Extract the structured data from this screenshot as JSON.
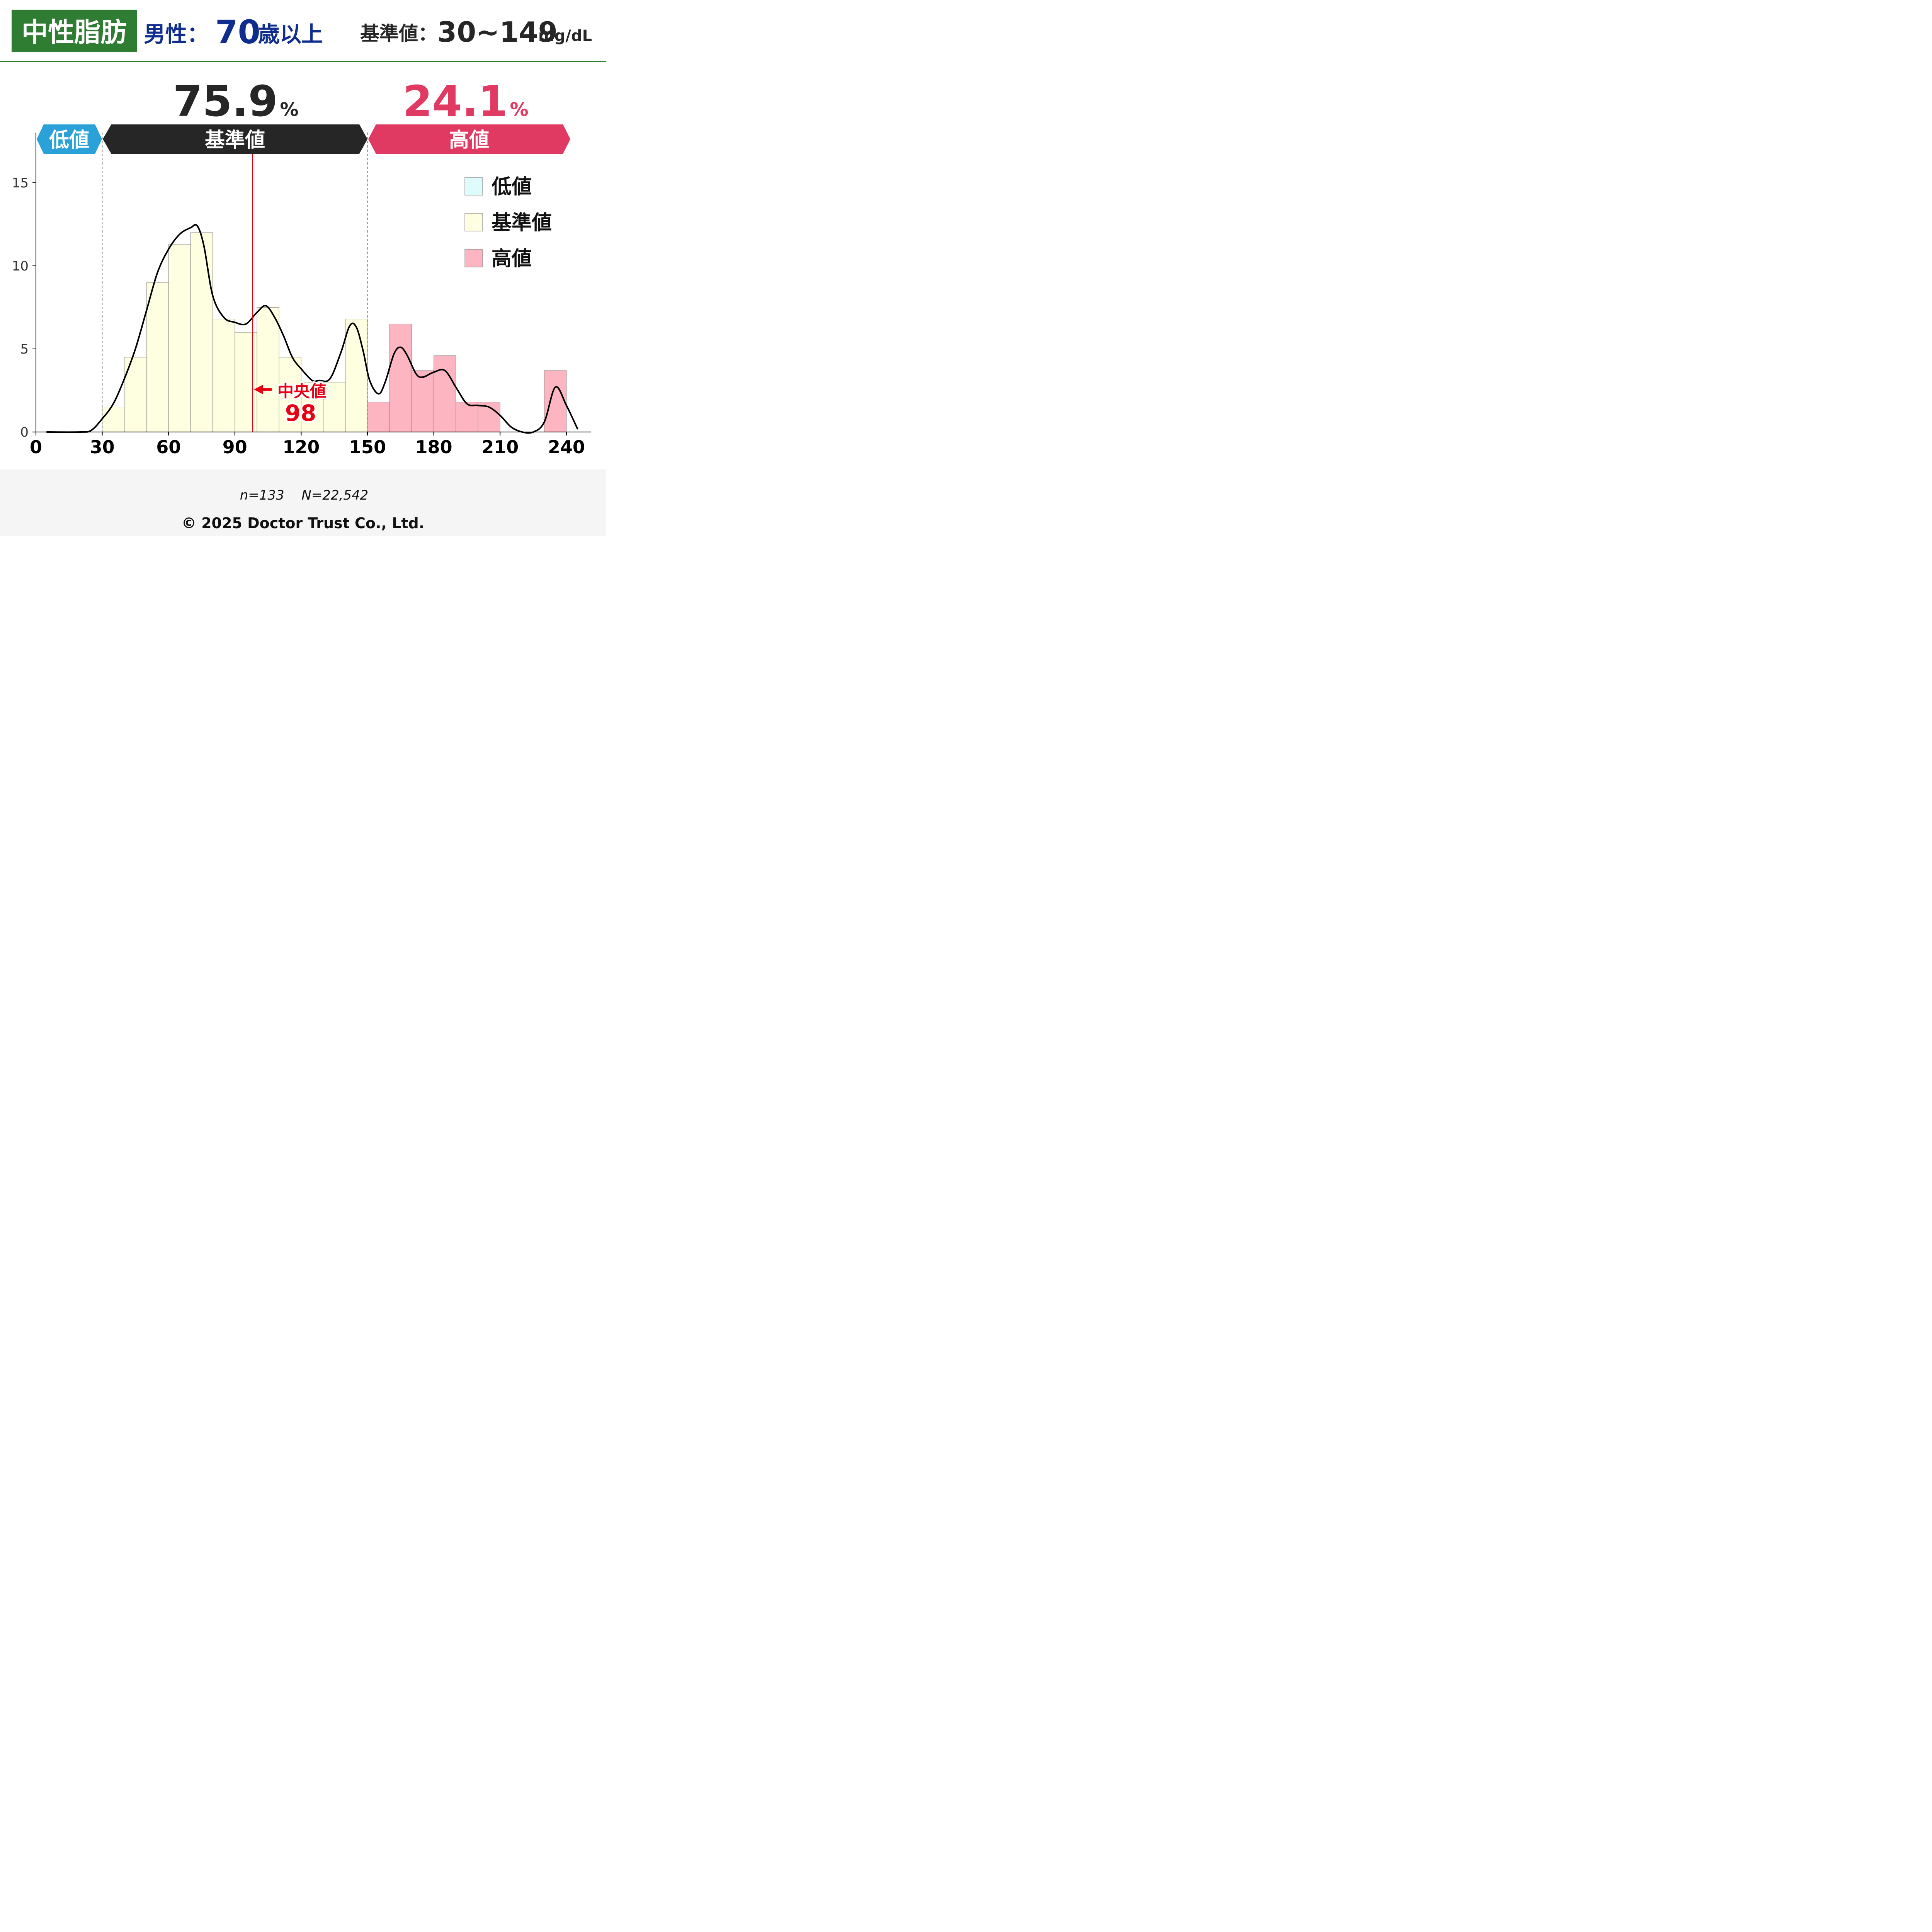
{
  "header": {
    "badge": "中性脂肪",
    "group_label": "男性：",
    "age": "70",
    "age_suffix": "歳以上",
    "ref_label": "基準値：",
    "ref_range": "30~149",
    "ref_unit": "mg/dL"
  },
  "percentages": {
    "normal_value": "75.9",
    "high_value": "24.1",
    "unit": "%"
  },
  "bands": {
    "low": "低値",
    "normal": "基準値",
    "high": "高値"
  },
  "colors": {
    "header_green": "#2e7d32",
    "navy": "#0f2d8c",
    "low_blue": "#2aa1d8",
    "normal_dark": "#262626",
    "high_pink": "#e03a63",
    "bar_low": "#dffcfc",
    "bar_normal": "#fefee0",
    "bar_high": "#fdb6c1",
    "median_red": "#e60012"
  },
  "median": {
    "label": "中央値",
    "value": "98"
  },
  "footer": {
    "counts": "n=133　 N=22,542",
    "copyright": "© 2025 Doctor Trust Co., Ltd."
  },
  "chart_data": {
    "type": "bar",
    "xlim": [
      0,
      250
    ],
    "ylim": [
      0,
      17.5
    ],
    "xticks": [
      0,
      30,
      60,
      90,
      120,
      150,
      180,
      210,
      240
    ],
    "yticks": [
      0,
      5,
      10,
      15
    ],
    "bin_width": 10,
    "reference_range": [
      30,
      150
    ],
    "median": 98,
    "legend": {
      "placement": "top-right",
      "entries": [
        {
          "name": "低値",
          "color": "#dffcfc"
        },
        {
          "name": "基準値",
          "color": "#fefee0"
        },
        {
          "name": "高値",
          "color": "#fdb6c1"
        }
      ]
    },
    "bins": [
      {
        "start": 30,
        "value": 1.5,
        "band": "normal"
      },
      {
        "start": 40,
        "value": 4.5,
        "band": "normal"
      },
      {
        "start": 50,
        "value": 9.0,
        "band": "normal"
      },
      {
        "start": 60,
        "value": 11.3,
        "band": "normal"
      },
      {
        "start": 70,
        "value": 12.0,
        "band": "normal"
      },
      {
        "start": 80,
        "value": 6.8,
        "band": "normal"
      },
      {
        "start": 90,
        "value": 6.0,
        "band": "normal"
      },
      {
        "start": 100,
        "value": 7.5,
        "band": "normal"
      },
      {
        "start": 110,
        "value": 4.5,
        "band": "normal"
      },
      {
        "start": 120,
        "value": 3.0,
        "band": "normal"
      },
      {
        "start": 130,
        "value": 3.0,
        "band": "normal"
      },
      {
        "start": 140,
        "value": 6.8,
        "band": "normal"
      },
      {
        "start": 150,
        "value": 1.8,
        "band": "high"
      },
      {
        "start": 160,
        "value": 6.5,
        "band": "high"
      },
      {
        "start": 170,
        "value": 3.7,
        "band": "high"
      },
      {
        "start": 180,
        "value": 4.6,
        "band": "high"
      },
      {
        "start": 190,
        "value": 1.8,
        "band": "high"
      },
      {
        "start": 200,
        "value": 1.8,
        "band": "high"
      },
      {
        "start": 230,
        "value": 3.7,
        "band": "high"
      }
    ],
    "density_curve": {
      "x": [
        5,
        20,
        25,
        30,
        35,
        40,
        45,
        50,
        55,
        60,
        65,
        70,
        73,
        76,
        80,
        85,
        90,
        95,
        100,
        104,
        108,
        112,
        116,
        120,
        125,
        128,
        133,
        138,
        142,
        145,
        148,
        151,
        155,
        158,
        162,
        165,
        168,
        172,
        175,
        180,
        185,
        190,
        195,
        200,
        205,
        210,
        215,
        220,
        225,
        230,
        235,
        240,
        245
      ],
      "y": [
        0.0,
        0.0,
        0.1,
        0.8,
        1.7,
        3.2,
        5.0,
        7.3,
        9.6,
        11.0,
        11.9,
        12.3,
        12.4,
        11.2,
        8.2,
        6.9,
        6.6,
        6.5,
        7.2,
        7.6,
        6.9,
        5.8,
        4.5,
        3.8,
        3.1,
        3.1,
        3.2,
        4.8,
        6.4,
        6.3,
        4.9,
        3.1,
        2.3,
        3.0,
        4.7,
        5.1,
        4.6,
        3.5,
        3.3,
        3.6,
        3.7,
        2.7,
        1.7,
        1.6,
        1.5,
        1.0,
        0.3,
        0.0,
        0.0,
        0.6,
        2.7,
        1.6,
        0.2
      ]
    }
  }
}
